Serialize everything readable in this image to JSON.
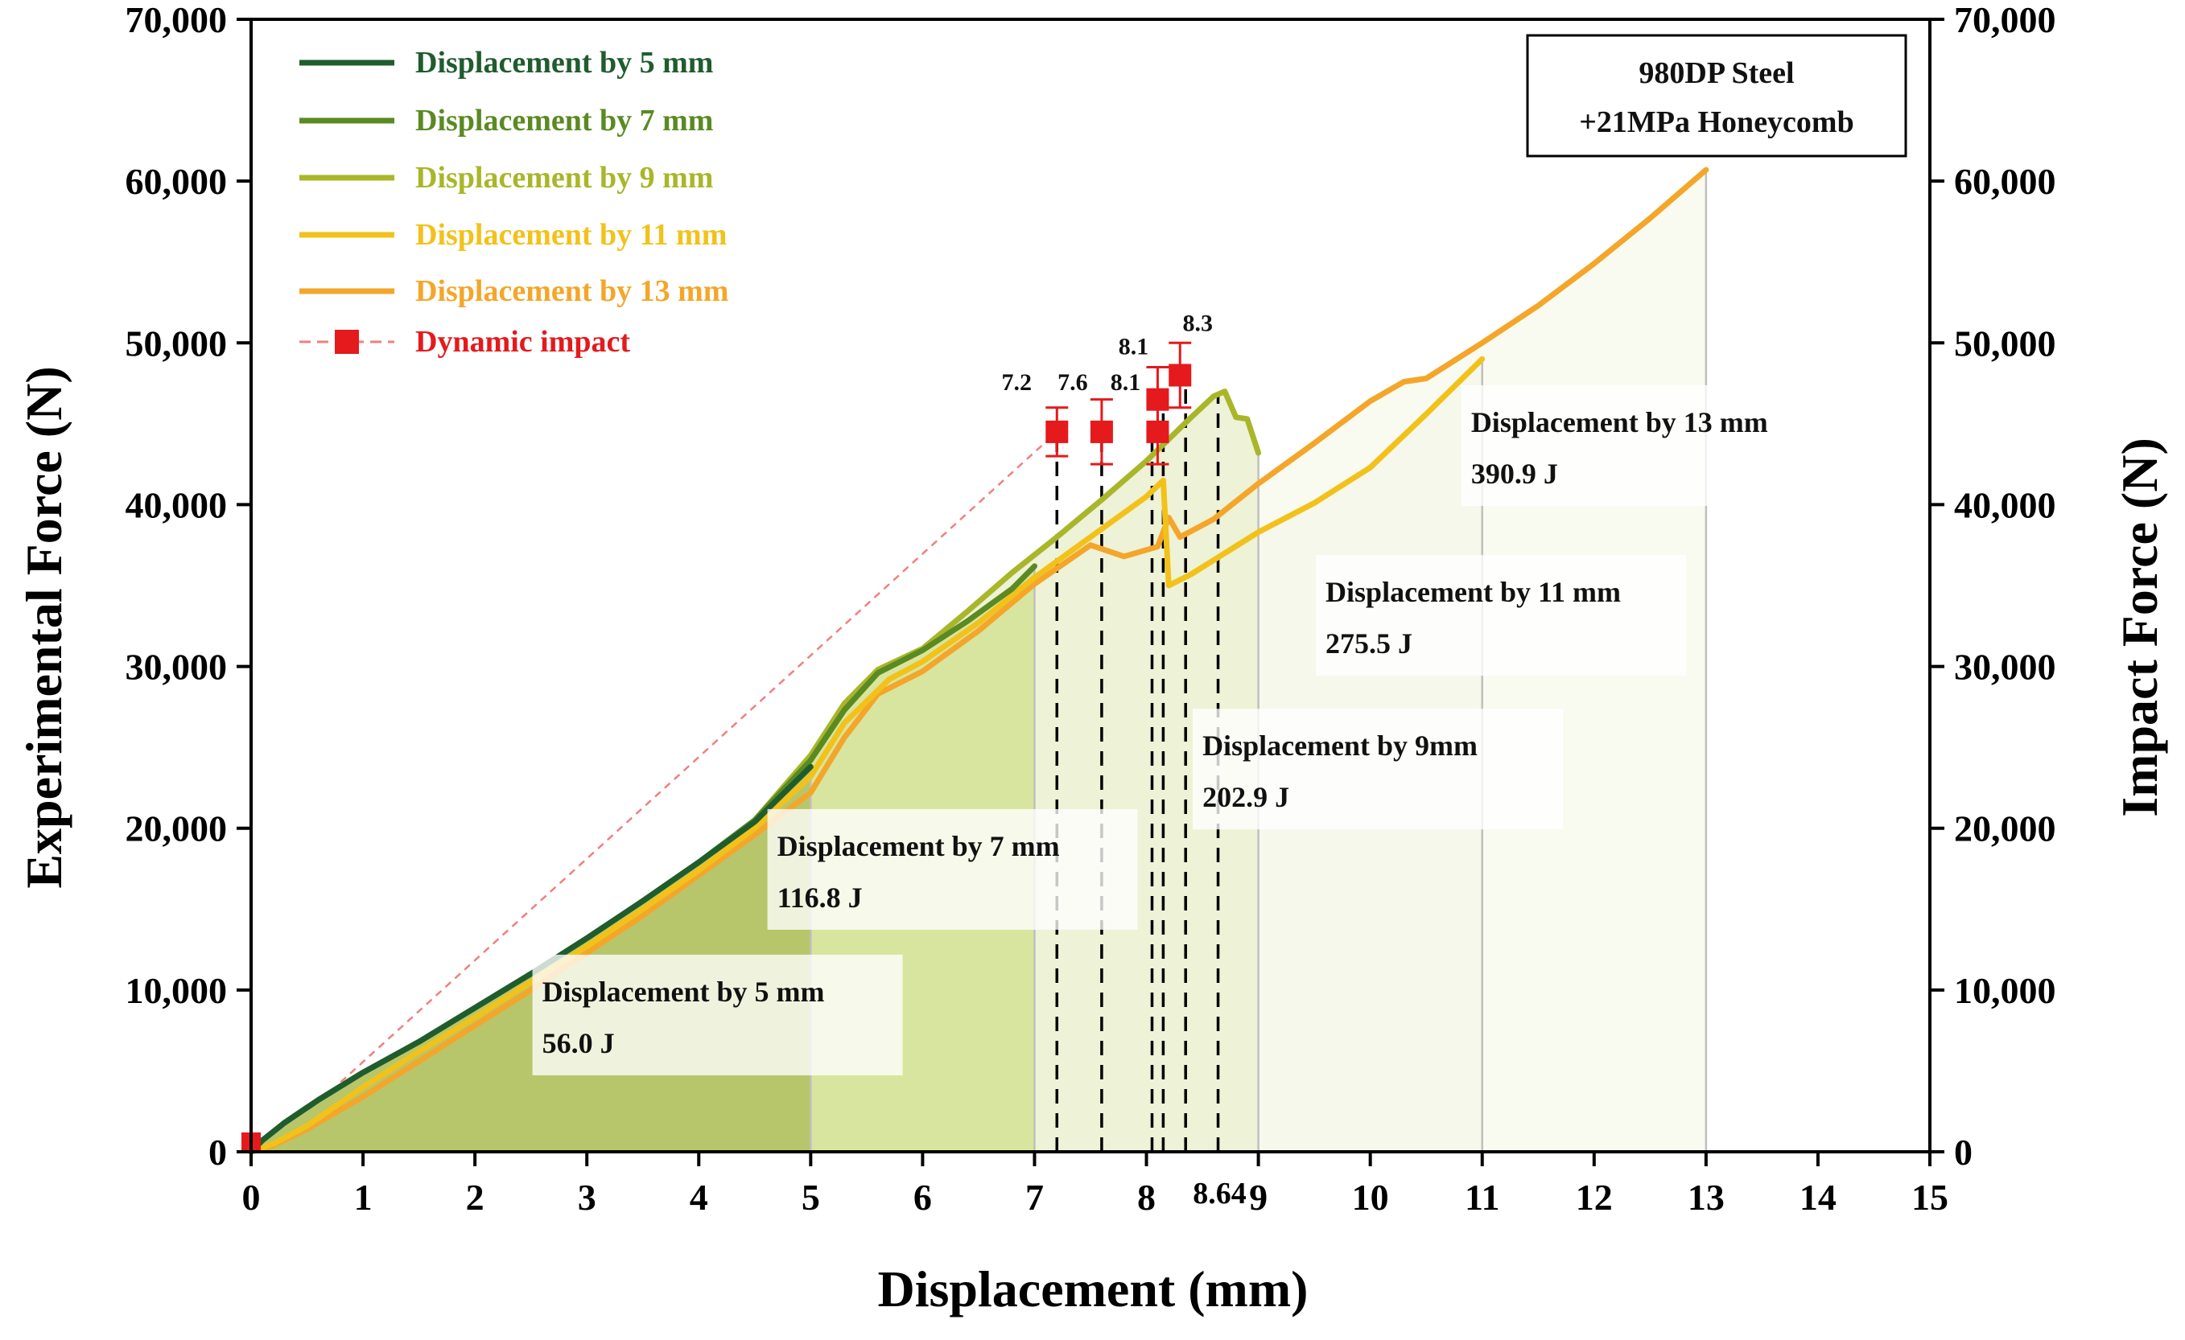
{
  "chart_data": {
    "type": "line",
    "xlabel": "Displacement (mm)",
    "ylabel": "Experimental Force (N)",
    "y2label": "Impact Force (N)",
    "xlim": [
      0,
      15
    ],
    "ylim": [
      0,
      70000
    ],
    "x_ticks": [
      0,
      1,
      2,
      3,
      4,
      5,
      6,
      7,
      8,
      9,
      10,
      11,
      12,
      13,
      14,
      15
    ],
    "x_tick_labels": [
      "0",
      "1",
      "2",
      "3",
      "4",
      "5",
      "6",
      "7",
      "8",
      "9",
      "10",
      "11",
      "12",
      "13",
      "14",
      "15"
    ],
    "extra_x_tick": {
      "x": 8.64,
      "label": "8.64"
    },
    "y_ticks": [
      0,
      10000,
      20000,
      30000,
      40000,
      50000,
      60000,
      70000
    ],
    "y_tick_labels": [
      "0",
      "10,000",
      "20,000",
      "30,000",
      "40,000",
      "50,000",
      "60,000",
      "70,000"
    ],
    "info_box": [
      "980DP Steel",
      "+21MPa Honeycomb"
    ],
    "series": [
      {
        "name": "Displacement by 5 mm",
        "color": "#1f5c2e",
        "x": [
          0,
          0.1,
          0.3,
          0.6,
          1,
          1.5,
          2,
          2.5,
          3,
          3.5,
          4,
          4.5,
          5
        ],
        "y": [
          0,
          700,
          1800,
          3200,
          4900,
          6800,
          8900,
          11000,
          13200,
          15500,
          17900,
          20400,
          23800
        ]
      },
      {
        "name": "Displacement by 7 mm",
        "color": "#5a8a22",
        "x": [
          0,
          0.1,
          0.3,
          0.6,
          1,
          1.5,
          2,
          2.5,
          3,
          3.5,
          4,
          4.5,
          5,
          5.3,
          5.6,
          6,
          6.4,
          6.8,
          7
        ],
        "y": [
          0,
          700,
          1800,
          3200,
          4900,
          6800,
          8900,
          11000,
          13200,
          15500,
          17900,
          20500,
          24200,
          27300,
          29600,
          31000,
          32800,
          34800,
          36200
        ]
      },
      {
        "name": "Displacement by 9 mm",
        "color": "#a9b62a",
        "x": [
          0,
          0.1,
          0.3,
          0.6,
          1,
          1.5,
          2,
          2.5,
          3,
          3.5,
          4,
          4.5,
          5,
          5.3,
          5.6,
          6,
          6.4,
          6.8,
          7.2,
          7.6,
          8,
          8.4,
          8.6,
          8.7,
          8.8,
          8.9,
          9.0
        ],
        "y": [
          0,
          700,
          1800,
          3200,
          4900,
          6800,
          8900,
          11000,
          13200,
          15500,
          17900,
          20500,
          24500,
          27700,
          29800,
          31100,
          33400,
          35800,
          38000,
          40300,
          42700,
          45400,
          46700,
          47000,
          45400,
          45300,
          43200
        ]
      },
      {
        "name": "Displacement by 11 mm",
        "color": "#f2c21b",
        "x": [
          0,
          0.2,
          0.5,
          1,
          1.5,
          2,
          2.5,
          3,
          3.5,
          4,
          4.5,
          5,
          5.3,
          5.7,
          6,
          6.5,
          7,
          7.5,
          8,
          8.15,
          8.2,
          8.4,
          9,
          9.5,
          10,
          10.5,
          11
        ],
        "y": [
          0,
          500,
          1600,
          4000,
          6200,
          8300,
          10500,
          12700,
          15000,
          17400,
          20000,
          23200,
          26500,
          29200,
          30300,
          32700,
          35500,
          38000,
          40500,
          41500,
          35000,
          35700,
          38300,
          40100,
          42300,
          45600,
          49000
        ]
      },
      {
        "name": "Displacement by 13 mm",
        "color": "#f4a62a",
        "x": [
          0,
          0.2,
          0.5,
          1,
          1.5,
          2,
          2.5,
          3,
          3.5,
          4,
          4.5,
          5,
          5.3,
          5.6,
          6,
          6.5,
          7,
          7.5,
          7.8,
          8.1,
          8.2,
          8.3,
          8.6,
          9,
          9.5,
          10,
          10.3,
          10.5,
          11,
          11.5,
          12,
          12.5,
          13
        ],
        "y": [
          0,
          400,
          1400,
          3400,
          5600,
          7800,
          10000,
          12300,
          14600,
          17100,
          19600,
          22200,
          25600,
          28300,
          29700,
          32200,
          35100,
          37500,
          36800,
          37400,
          39200,
          38000,
          39100,
          41300,
          43800,
          46400,
          47600,
          47800,
          50000,
          52300,
          54900,
          57700,
          60700
        ]
      }
    ],
    "dynamic_impact": {
      "name": "Dynamic impact",
      "color": "#e41a1c",
      "x": [
        7.2,
        7.6,
        8.1,
        8.1,
        8.3
      ],
      "y": [
        44500,
        44500,
        44500,
        46500,
        48000
      ],
      "err": [
        1500,
        2000,
        2000,
        2000,
        2000
      ],
      "labels": [
        "7.2",
        "7.6",
        "8.1",
        "8.1",
        "8.3"
      ]
    },
    "dashed_trend": {
      "x": [
        0.8,
        7.2
      ],
      "y": [
        4300,
        44500
      ]
    },
    "impact_verticals": [
      7.2,
      7.6,
      8.05,
      8.15,
      8.35,
      8.64
    ],
    "energy_regions": [
      {
        "x_end": 5,
        "label": "Displacement by 5 mm",
        "energy": "56.0 J"
      },
      {
        "x_end": 7,
        "label": "Displacement by 7 mm",
        "energy": "116.8 J"
      },
      {
        "x_end": 9,
        "label": "Displacement by 9mm",
        "energy": "202.9 J"
      },
      {
        "x_end": 11,
        "label": "Displacement by 11 mm",
        "energy": "275.5 J"
      },
      {
        "x_end": 13,
        "label": "Displacement by 13 mm",
        "energy": "390.9 J"
      }
    ]
  }
}
